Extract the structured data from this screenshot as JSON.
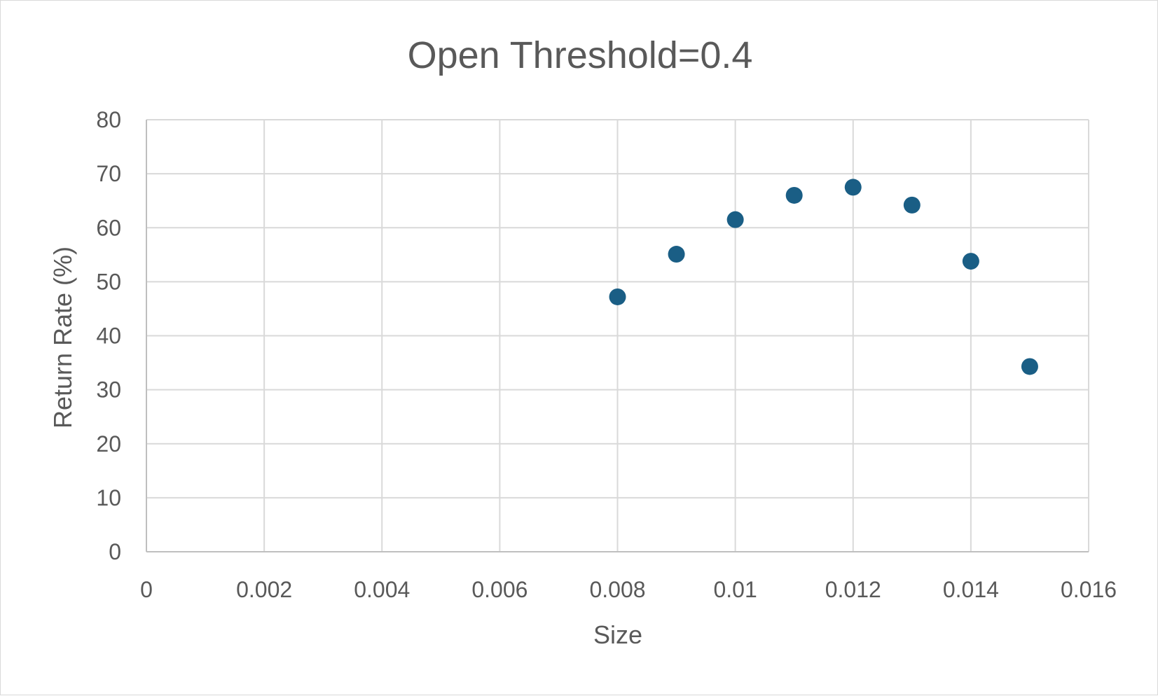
{
  "chart_data": {
    "type": "scatter",
    "title": "Open Threshold=0.4",
    "xlabel": "Size",
    "ylabel": "Return Rate (%)",
    "xlim": [
      0,
      0.016
    ],
    "ylim": [
      0,
      80
    ],
    "x_ticks": [
      0,
      0.002,
      0.004,
      0.006,
      0.008,
      0.01,
      0.012,
      0.014,
      0.016
    ],
    "x_tick_labels": [
      "0",
      "0.002",
      "0.004",
      "0.006",
      "0.008",
      "0.01",
      "0.012",
      "0.014",
      "0.016"
    ],
    "y_ticks": [
      0,
      10,
      20,
      30,
      40,
      50,
      60,
      70,
      80
    ],
    "y_tick_labels": [
      "0",
      "10",
      "20",
      "30",
      "40",
      "50",
      "60",
      "70",
      "80"
    ],
    "grid": true,
    "legend": "none",
    "marker_color": "#1a5e85",
    "series": [
      {
        "x": [
          0.008,
          0.009,
          0.01,
          0.011,
          0.012,
          0.013,
          0.014,
          0.015
        ],
        "y": [
          47.2,
          55.1,
          61.5,
          66.0,
          67.5,
          64.2,
          53.8,
          34.3
        ]
      }
    ]
  }
}
